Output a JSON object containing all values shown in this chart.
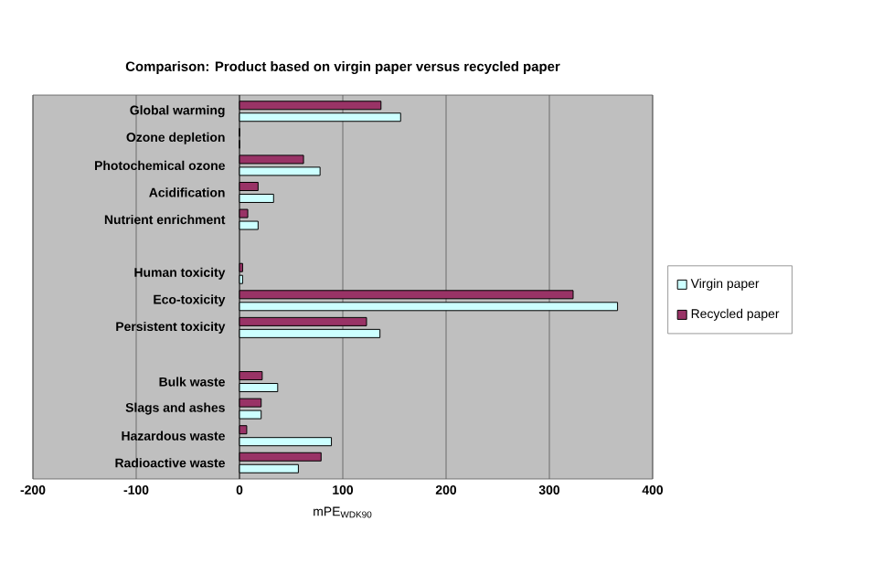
{
  "chart_data": {
    "type": "bar",
    "orientation": "horizontal",
    "title": "Comparison: Product based on virgin paper versus recycled paper",
    "xlabel": "mPE$_{WDK90}$",
    "categories": [
      "Global warming",
      "Ozone depletion",
      "Photochemical ozone",
      "Acidification",
      "Nutrient enrichment",
      null,
      "Human toxicity",
      "Eco-toxicity",
      "Persistent toxicity",
      null,
      "Bulk waste",
      "Slags and ashes",
      "Hazardous waste",
      "Radioactive waste"
    ],
    "series": [
      {
        "name": "Virgin paper",
        "color": "#ccffff",
        "values": [
          156,
          0,
          78,
          33,
          18,
          null,
          3,
          366,
          136,
          null,
          37,
          21,
          89,
          57
        ]
      },
      {
        "name": "Recycled paper",
        "color": "#993366",
        "values": [
          137,
          0,
          62,
          18,
          8,
          null,
          3,
          323,
          123,
          null,
          22,
          21,
          7,
          79
        ]
      }
    ],
    "xlim": [
      -200,
      400
    ],
    "xticks": [
      -200,
      -100,
      0,
      100,
      200,
      300,
      400
    ],
    "grid": "x",
    "legend": "right"
  }
}
